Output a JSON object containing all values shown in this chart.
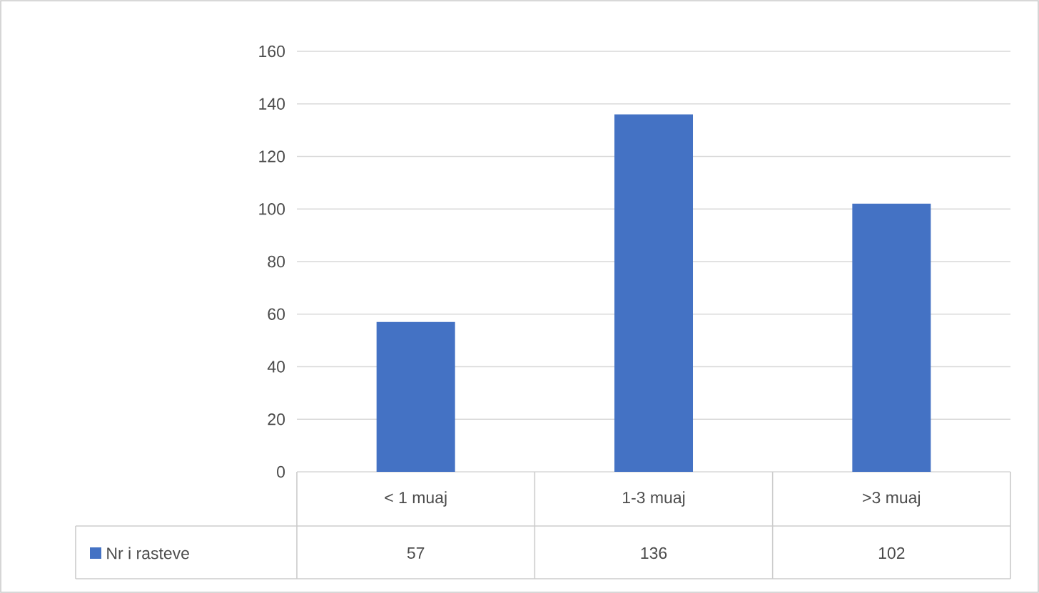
{
  "chart_data": {
    "type": "bar",
    "categories": [
      "< 1 muaj",
      "1-3 muaj",
      ">3 muaj"
    ],
    "series": [
      {
        "name": "Nr i rasteve",
        "color": "#4472c4",
        "values": [
          57,
          136,
          102
        ]
      }
    ],
    "ylim": [
      0,
      160
    ],
    "yticks": [
      0,
      20,
      40,
      60,
      80,
      100,
      120,
      140,
      160
    ],
    "grid": "y",
    "legend": "bottom",
    "data_labels": true
  }
}
